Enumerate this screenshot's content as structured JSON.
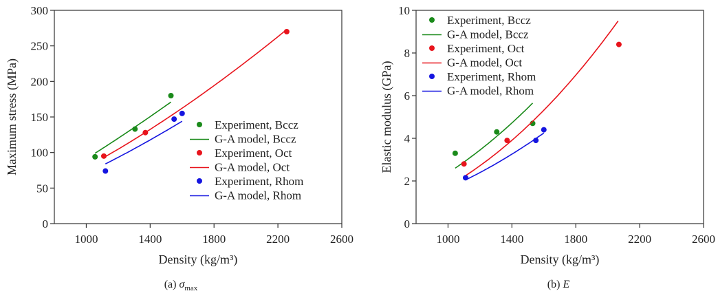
{
  "chart_data": [
    {
      "type": "scatter",
      "panel": "a",
      "caption_prefix": "(a) ",
      "caption_symbol": "σ",
      "caption_sub": "max",
      "xlabel": "Density (kg/m³)",
      "ylabel": "Maximum stress (MPa)",
      "xlim": [
        800,
        2600
      ],
      "ylim": [
        0,
        300
      ],
      "xticks": [
        1000,
        1400,
        1800,
        2200,
        2600
      ],
      "yticks": [
        0,
        50,
        100,
        150,
        200,
        250,
        300
      ],
      "grid": false,
      "legend_position": "lower-right",
      "series": [
        {
          "name": "Experiment, Bccz",
          "kind": "points",
          "color": "#1a8a1a",
          "points": [
            [
              1055,
              94
            ],
            [
              1305,
              133
            ],
            [
              1530,
              180
            ]
          ]
        },
        {
          "name": "G-A model, Bccz",
          "kind": "line",
          "color": "#1a8a1a",
          "x_range": [
            1055,
            1530
          ],
          "y_range": [
            99,
            171
          ],
          "exponent": 1.3
        },
        {
          "name": "Experiment, Oct",
          "kind": "points",
          "color": "#e8141c",
          "points": [
            [
              1110,
              95
            ],
            [
              1370,
              128
            ],
            [
              2255,
              270
            ]
          ]
        },
        {
          "name": "G-A model, Oct",
          "kind": "line",
          "color": "#e8141c",
          "x_range": [
            1110,
            2250
          ],
          "y_range": [
            93,
            272
          ],
          "exponent": 1.5
        },
        {
          "name": "Experiment, Rhom",
          "kind": "points",
          "color": "#1515e0",
          "points": [
            [
              1120,
              74
            ],
            [
              1550,
              147
            ],
            [
              1600,
              155
            ]
          ]
        },
        {
          "name": "G-A model, Rhom",
          "kind": "line",
          "color": "#1515e0",
          "x_range": [
            1120,
            1600
          ],
          "y_range": [
            84,
            144
          ],
          "exponent": 1.5
        }
      ]
    },
    {
      "type": "scatter",
      "panel": "b",
      "caption_prefix": "(b) ",
      "caption_symbol": "E",
      "caption_sub": "",
      "xlabel": "Density (kg/m³)",
      "ylabel": "Elastic modulus (GPa)",
      "xlim": [
        800,
        2600
      ],
      "ylim": [
        0,
        10
      ],
      "xticks": [
        1000,
        1400,
        1800,
        2200,
        2600
      ],
      "yticks": [
        0,
        2,
        4,
        6,
        8,
        10
      ],
      "grid": false,
      "legend_position": "upper-left",
      "series": [
        {
          "name": "Experiment, Bccz",
          "kind": "points",
          "color": "#1a8a1a",
          "points": [
            [
              1045,
              3.3
            ],
            [
              1305,
              4.3
            ],
            [
              1530,
              4.7
            ]
          ]
        },
        {
          "name": "G-A model, Bccz",
          "kind": "line",
          "color": "#1a8a1a",
          "x_range": [
            1045,
            1530
          ],
          "y_range": [
            2.6,
            5.65
          ],
          "exponent": 2.0
        },
        {
          "name": "Experiment, Oct",
          "kind": "points",
          "color": "#e8141c",
          "points": [
            [
              1100,
              2.8
            ],
            [
              1370,
              3.9
            ],
            [
              2070,
              8.4
            ]
          ]
        },
        {
          "name": "G-A model, Oct",
          "kind": "line",
          "color": "#e8141c",
          "x_range": [
            1110,
            2065
          ],
          "y_range": [
            2.25,
            9.5
          ],
          "exponent": 2.2
        },
        {
          "name": "Experiment, Rhom",
          "kind": "points",
          "color": "#1515e0",
          "points": [
            [
              1110,
              2.15
            ],
            [
              1550,
              3.9
            ],
            [
              1600,
              4.4
            ]
          ]
        },
        {
          "name": "G-A model, Rhom",
          "kind": "line",
          "color": "#1515e0",
          "x_range": [
            1110,
            1600
          ],
          "y_range": [
            2.05,
            4.25
          ],
          "exponent": 2.0
        }
      ]
    }
  ]
}
